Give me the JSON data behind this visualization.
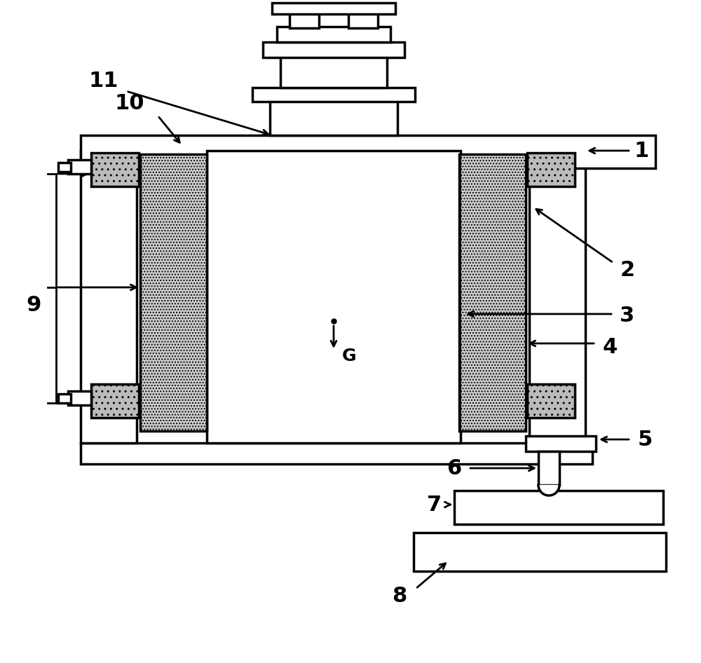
{
  "bg_color": "#ffffff",
  "lc": "#000000",
  "lw": 2.5,
  "fig_w": 10.0,
  "fig_h": 9.46,
  "label_fs": 22,
  "hatch_fc": "#cccccc",
  "fitting_fc": "#bbbbbb"
}
